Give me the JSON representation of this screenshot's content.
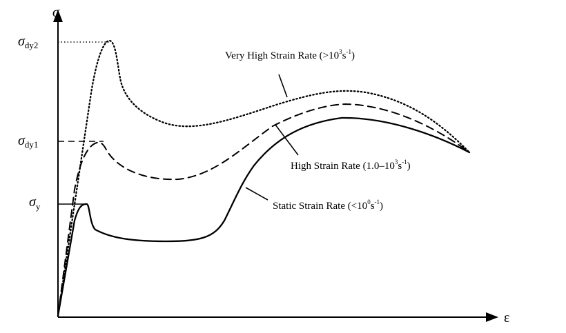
{
  "axes": {
    "y_symbol": "σ",
    "x_symbol": "ε"
  },
  "levels": {
    "dy2": {
      "base": "σ",
      "sub": "dy2"
    },
    "dy1": {
      "base": "σ",
      "sub": "dy1"
    },
    "y": {
      "base": "σ",
      "sub": "y"
    }
  },
  "curves": {
    "very_high": {
      "line_style": "dotted",
      "label_prefix": "Very High Strain Rate (>10",
      "label_exp1": "3",
      "label_unit": "s",
      "label_exp2": "-1",
      "label_suffix": ")"
    },
    "high": {
      "line_style": "dashed",
      "label_prefix": "High Strain Rate (1.0–10",
      "label_exp1": "3",
      "label_unit": "s",
      "label_exp2": "-1",
      "label_suffix": ")"
    },
    "static": {
      "line_style": "solid",
      "label_prefix": "Static Strain Rate (<10",
      "label_exp1": "0",
      "label_unit": "s",
      "label_exp2": "-1",
      "label_suffix": ")"
    }
  }
}
